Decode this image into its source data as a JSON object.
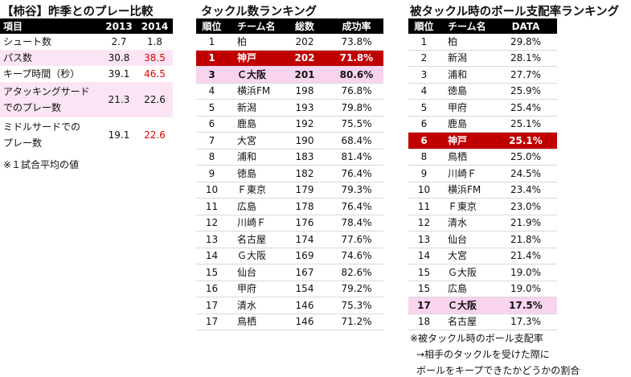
{
  "left": {
    "title": "【柿谷】昨季とのプレー比較",
    "header": [
      "項目",
      "2013",
      "2014"
    ],
    "rows": [
      [
        "シュート数",
        "2.7",
        "1.8"
      ],
      [
        "パス数",
        "30.8",
        "38.5"
      ],
      [
        "キープ時間（秒）",
        "39.1",
        "46.5"
      ],
      [
        "アタッキングサード\nでのプレー数",
        "21.3",
        "22.6"
      ],
      [
        "ミドルサードでの\nプレー数",
        "19.1",
        "22.6"
      ]
    ],
    "note": "※１試合平均の値"
  },
  "middle": {
    "title": "タックル数ランキング",
    "header": [
      "順位",
      "チーム名",
      "総数",
      "成功率"
    ],
    "rows": [
      [
        "1",
        "柏",
        "202",
        "73.8%"
      ],
      [
        "1",
        "神戸",
        "202",
        "71.8%"
      ],
      [
        "3",
        "Ｃ大阪",
        "201",
        "80.6%"
      ],
      [
        "4",
        "横浜FM",
        "198",
        "76.8%"
      ],
      [
        "5",
        "新潟",
        "193",
        "79.8%"
      ],
      [
        "6",
        "鹿島",
        "192",
        "75.5%"
      ],
      [
        "7",
        "大宮",
        "190",
        "68.4%"
      ],
      [
        "8",
        "浦和",
        "183",
        "81.4%"
      ],
      [
        "9",
        "徳島",
        "182",
        "76.4%"
      ],
      [
        "10",
        "Ｆ東京",
        "179",
        "79.3%"
      ],
      [
        "11",
        "広島",
        "178",
        "76.4%"
      ],
      [
        "12",
        "川崎Ｆ",
        "176",
        "78.4%"
      ],
      [
        "13",
        "名古屋",
        "174",
        "77.6%"
      ],
      [
        "14",
        "Ｇ大阪",
        "169",
        "74.6%"
      ],
      [
        "15",
        "仙台",
        "167",
        "82.6%"
      ],
      [
        "16",
        "甲府",
        "154",
        "79.2%"
      ],
      [
        "17",
        "清水",
        "146",
        "75.3%"
      ],
      [
        "17",
        "鳥栖",
        "146",
        "71.2%"
      ]
    ]
  },
  "right": {
    "title": "被タックル時のボール支配率ランキング",
    "header": [
      "順位",
      "チーム名",
      "DATA"
    ],
    "rows": [
      [
        "1",
        "柏",
        "29.8%"
      ],
      [
        "2",
        "新潟",
        "28.1%"
      ],
      [
        "3",
        "浦和",
        "27.7%"
      ],
      [
        "4",
        "徳島",
        "25.9%"
      ],
      [
        "5",
        "甲府",
        "25.4%"
      ],
      [
        "6",
        "鹿島",
        "25.1%"
      ],
      [
        "6",
        "神戸",
        "25.1%"
      ],
      [
        "8",
        "鳥栖",
        "25.0%"
      ],
      [
        "9",
        "川崎Ｆ",
        "24.5%"
      ],
      [
        "10",
        "横浜FM",
        "23.4%"
      ],
      [
        "11",
        "Ｆ東京",
        "23.0%"
      ],
      [
        "12",
        "清水",
        "21.9%"
      ],
      [
        "13",
        "仙台",
        "21.8%"
      ],
      [
        "14",
        "大宮",
        "21.4%"
      ],
      [
        "15",
        "Ｇ大阪",
        "19.0%"
      ],
      [
        "15",
        "広島",
        "19.0%"
      ],
      [
        "17",
        "Ｃ大阪",
        "17.5%"
      ],
      [
        "18",
        "名古屋",
        "17.3%"
      ]
    ],
    "notes": [
      "※被タックル時のボール支配率",
      "→相手のタックルを受けた際に",
      "ボールをキープできたかどうかの割合"
    ]
  }
}
